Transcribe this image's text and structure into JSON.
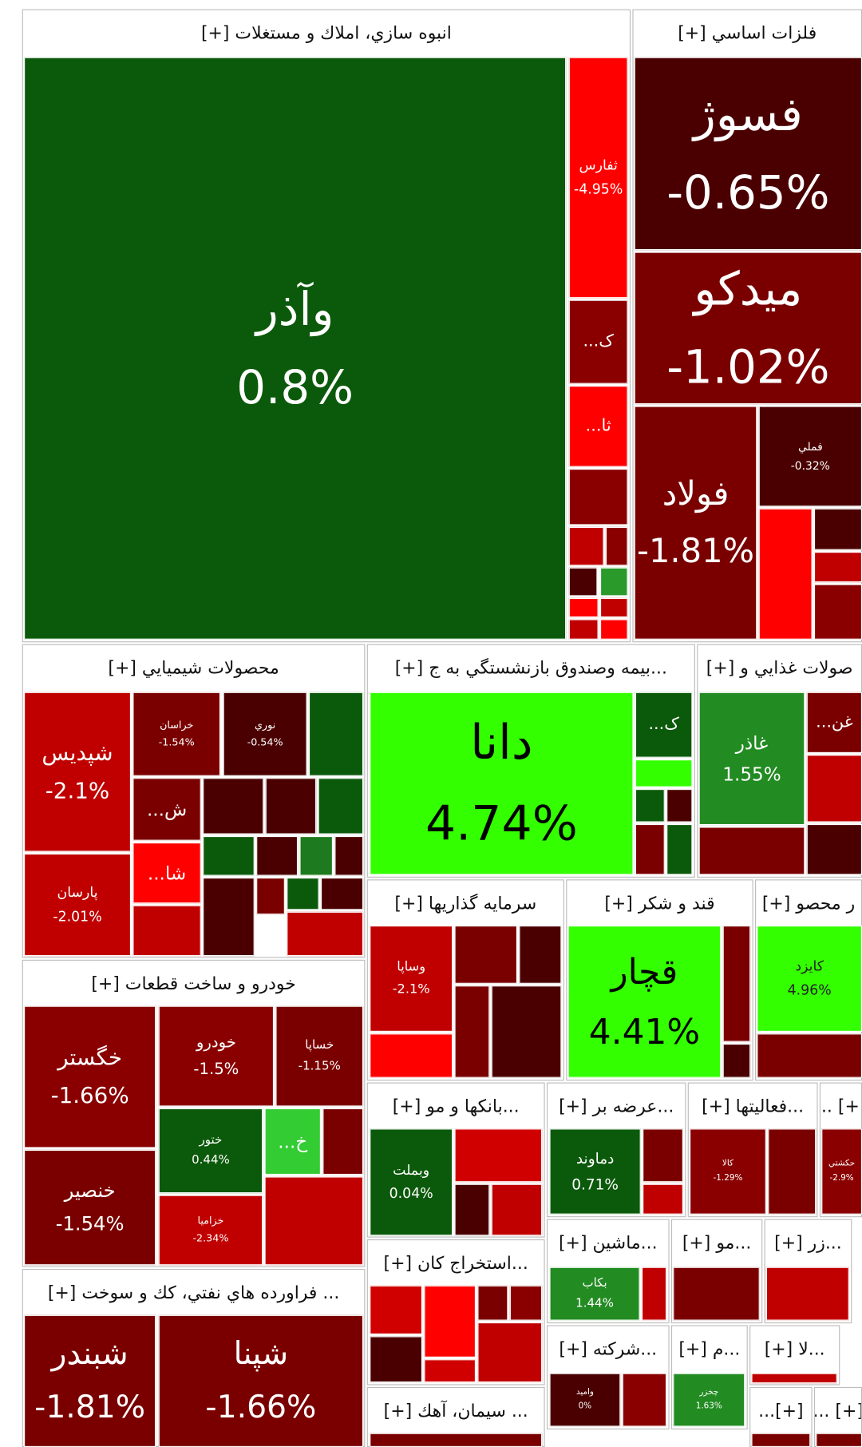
{
  "sectors": [
    {
      "title": "انبوه سازي، املاك و مستغلات [+]",
      "tiles": [
        {
          "symbol": "وآذر",
          "change": "0.8%"
        },
        {
          "symbol": "ثفارس",
          "change": "-4.95%"
        },
        {
          "symbol": "ک..."
        },
        {
          "symbol": "ثا..."
        }
      ]
    },
    {
      "title": "فلزات اساسي [+]",
      "tiles": [
        {
          "symbol": "فسوژ",
          "change": "-0.65%"
        },
        {
          "symbol": "ميدكو",
          "change": "-1.02%"
        },
        {
          "symbol": "فولاد",
          "change": "-1.81%"
        },
        {
          "symbol": "فملي",
          "change": "-0.32%"
        }
      ]
    },
    {
      "title": "محصولات شيميايي [+]",
      "tiles": [
        {
          "symbol": "شپديس",
          "change": "-2.1%"
        },
        {
          "symbol": "پارسان",
          "change": "-2.01%"
        },
        {
          "symbol": "خراسان",
          "change": "-1.54%"
        },
        {
          "symbol": "نوري",
          "change": "-0.54%"
        },
        {
          "symbol": "ش..."
        },
        {
          "symbol": "شا..."
        }
      ]
    },
    {
      "title": "...بيمه وصندوق بازنشستگي به ج [+]",
      "tiles": [
        {
          "symbol": "دانا",
          "change": "4.74%"
        },
        {
          "symbol": "ک..."
        }
      ]
    },
    {
      "title": "صولات غذايي و [+]",
      "tiles": [
        {
          "symbol": "غاذر",
          "change": "1.55%"
        },
        {
          "symbol": "غن..."
        }
      ]
    },
    {
      "title": "سرمايه گذاريها [+]",
      "tiles": [
        {
          "symbol": "وساپا",
          "change": "-2.1%"
        }
      ]
    },
    {
      "title": "قند و شكر [+]",
      "tiles": [
        {
          "symbol": "قچار",
          "change": "4.41%"
        }
      ]
    },
    {
      "title": "ر محصو [+]",
      "tiles": [
        {
          "symbol": "كايزد",
          "change": "4.96%"
        }
      ]
    },
    {
      "title": "خودرو و ساخت قطعات [+]",
      "tiles": [
        {
          "symbol": "خگستر",
          "change": "-1.66%"
        },
        {
          "symbol": "خنصير",
          "change": "-1.54%"
        },
        {
          "symbol": "خودرو",
          "change": "-1.5%"
        },
        {
          "symbol": "خساپا",
          "change": "-1.15%"
        },
        {
          "symbol": "ختور",
          "change": "0.44%"
        },
        {
          "symbol": "خ..."
        },
        {
          "symbol": "خزاميا",
          "change": "-2.34%"
        }
      ]
    },
    {
      "title": "...بانكها و مو [+]",
      "tiles": [
        {
          "symbol": "وبملت",
          "change": "0.04%"
        }
      ]
    },
    {
      "title": "...عرضه بر [+]",
      "tiles": [
        {
          "symbol": "دماوند",
          "change": "0.71%"
        }
      ]
    },
    {
      "title": "...فعاليتها [+]",
      "tiles": [
        {
          "symbol": "كالا",
          "change": "-1.29%"
        }
      ]
    },
    {
      "title": "[+] ...",
      "tiles": [
        {
          "symbol": "حكشتي",
          "change": "-2.9%"
        }
      ]
    },
    {
      "title": "... فراورده هاي نفتي، كك و سوخت [+]",
      "tiles": [
        {
          "symbol": "شبندر",
          "change": "-1.81%"
        },
        {
          "symbol": "شپنا",
          "change": "-1.66%"
        }
      ]
    },
    {
      "title": "...استخراج كان [+]",
      "tiles": []
    },
    {
      "title": "... سيمان، آهك [+]",
      "tiles": []
    },
    {
      "title": "...ماشين [+]",
      "tiles": [
        {
          "symbol": "بكاب",
          "change": "1.44%"
        }
      ]
    },
    {
      "title": "...مو [+]",
      "tiles": []
    },
    {
      "title": "...زر [+]",
      "tiles": []
    },
    {
      "title": "...شركته [+]",
      "tiles": [
        {
          "symbol": "واميد",
          "change": "0%"
        }
      ]
    },
    {
      "title": "...م [+]",
      "tiles": [
        {
          "symbol": "چخزر",
          "change": "1.63%"
        }
      ]
    },
    {
      "title": "...لا [+]",
      "tiles": []
    },
    {
      "title": "[+]...",
      "tiles": []
    },
    {
      "title": "[+] ...",
      "tiles": []
    }
  ]
}
